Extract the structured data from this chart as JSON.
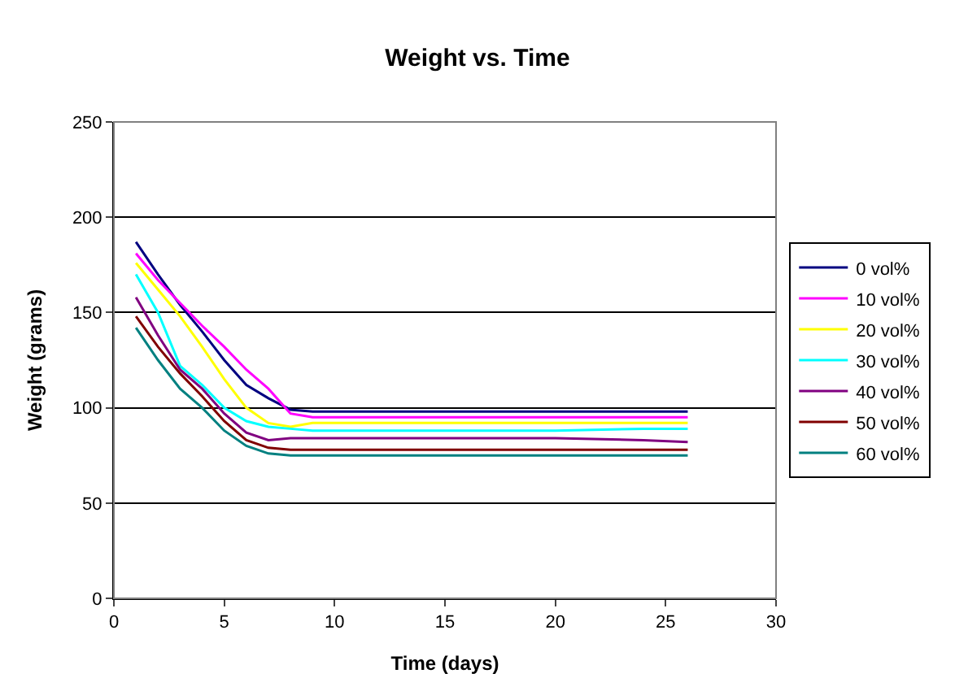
{
  "chart_data": {
    "type": "line",
    "title": "Weight vs. Time",
    "xlabel": "Time (days)",
    "ylabel": "Weight (grams)",
    "x": [
      1,
      2,
      3,
      4,
      5,
      6,
      7,
      8,
      9,
      12,
      15,
      20,
      24,
      26
    ],
    "series": [
      {
        "name": "0 vol%",
        "color": "#000080",
        "values": [
          187,
          170,
          154,
          140,
          125,
          112,
          105,
          99,
          98,
          98,
          98,
          98,
          98,
          98
        ]
      },
      {
        "name": "10 vol%",
        "color": "#ff00ff",
        "values": [
          181,
          167,
          155,
          143,
          132,
          120,
          110,
          97,
          95,
          95,
          95,
          95,
          95,
          95
        ]
      },
      {
        "name": "20 vol%",
        "color": "#ffff00",
        "values": [
          176,
          162,
          148,
          132,
          115,
          100,
          92,
          90,
          92,
          92,
          92,
          92,
          92,
          92
        ]
      },
      {
        "name": "30 vol%",
        "color": "#00ffff",
        "values": [
          170,
          150,
          122,
          112,
          100,
          93,
          90,
          89,
          88,
          88,
          88,
          88,
          89,
          89
        ]
      },
      {
        "name": "40 vol%",
        "color": "#800080",
        "values": [
          158,
          138,
          120,
          110,
          97,
          87,
          83,
          84,
          84,
          84,
          84,
          84,
          83,
          82
        ]
      },
      {
        "name": "50 vol%",
        "color": "#800000",
        "values": [
          148,
          132,
          118,
          106,
          93,
          83,
          79,
          78,
          78,
          78,
          78,
          78,
          78,
          78
        ]
      },
      {
        "name": "60 vol%",
        "color": "#008080",
        "values": [
          142,
          125,
          110,
          100,
          88,
          80,
          76,
          75,
          75,
          75,
          75,
          75,
          75,
          75
        ]
      }
    ],
    "xlim": [
      0,
      30
    ],
    "xticks": [
      0,
      5,
      10,
      15,
      20,
      25,
      30
    ],
    "ylim": [
      0,
      250
    ],
    "yticks": [
      0,
      50,
      100,
      150,
      200,
      250
    ],
    "grid": "y",
    "legend": "right",
    "marker": "none",
    "line_style": "solid"
  }
}
